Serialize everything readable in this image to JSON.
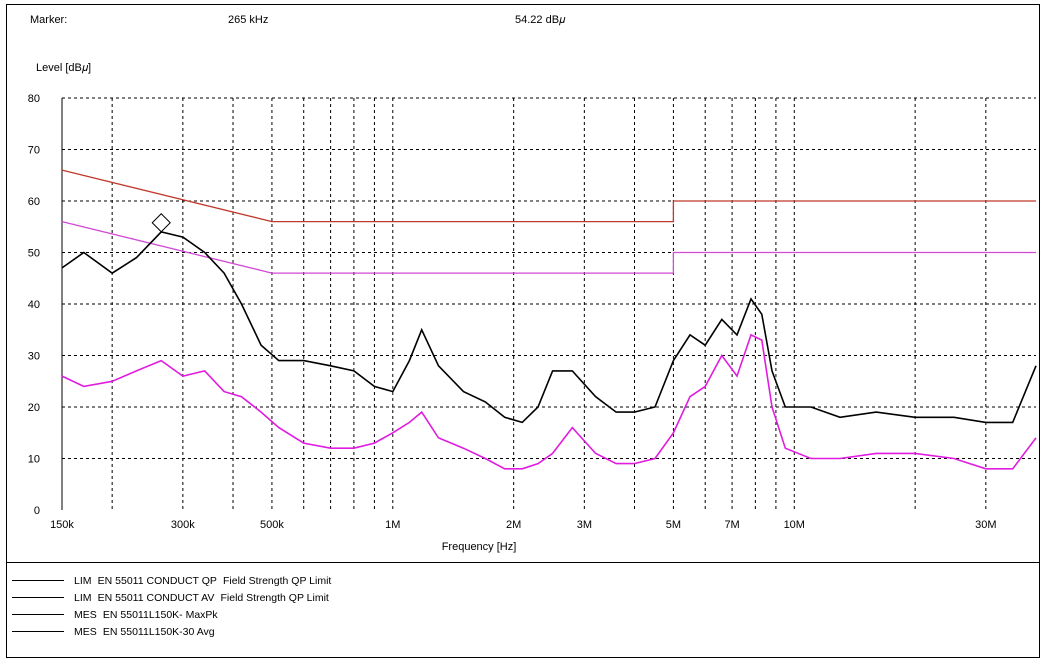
{
  "header": {
    "marker_label": "Marker:",
    "marker_frequency": "265 kHz",
    "marker_level": "54.22 dB𝜇"
  },
  "chart_data": {
    "type": "line",
    "xscale": "log",
    "xlim": [
      150000,
      40000000
    ],
    "ylim": [
      0,
      80
    ],
    "xlabel": "Frequency [Hz]",
    "ylabel": "Level [dB𝜇]",
    "grid": true,
    "x_ticks": [
      {
        "value": 150000,
        "label": "150k"
      },
      {
        "value": 300000,
        "label": "300k"
      },
      {
        "value": 500000,
        "label": "500k"
      },
      {
        "value": 1000000,
        "label": "1M"
      },
      {
        "value": 2000000,
        "label": "2M"
      },
      {
        "value": 3000000,
        "label": "3M"
      },
      {
        "value": 5000000,
        "label": "5M"
      },
      {
        "value": 7000000,
        "label": "7M"
      },
      {
        "value": 10000000,
        "label": "10M"
      },
      {
        "value": 30000000,
        "label": "30M"
      }
    ],
    "y_ticks": [
      0,
      10,
      20,
      30,
      40,
      50,
      60,
      70,
      80
    ],
    "marker": {
      "x": 265000,
      "y": 54.22
    },
    "series": [
      {
        "name": "LIM EN 55011 CONDUCT QP Field Strength QP Limit",
        "color": "#c0392b",
        "x": [
          150000,
          500000,
          5000000,
          5000000,
          40000000
        ],
        "y": [
          66,
          56,
          56,
          60,
          60
        ]
      },
      {
        "name": "LIM EN 55011 CONDUCT AV Field Strength QP Limit",
        "color": "#d24ad6",
        "x": [
          150000,
          500000,
          5000000,
          5000000,
          40000000
        ],
        "y": [
          56,
          46,
          46,
          50,
          50
        ]
      },
      {
        "name": "MES EN 55011L150K- MaxPk",
        "color": "#000000",
        "x": [
          150000,
          170000,
          200000,
          230000,
          265000,
          300000,
          340000,
          380000,
          420000,
          470000,
          520000,
          600000,
          700000,
          800000,
          900000,
          1000000,
          1100000,
          1180000,
          1300000,
          1500000,
          1700000,
          1900000,
          2100000,
          2300000,
          2500000,
          2800000,
          3200000,
          3600000,
          4000000,
          4500000,
          5000000,
          5500000,
          6000000,
          6600000,
          7200000,
          7800000,
          8300000,
          8800000,
          9500000,
          11000000,
          13000000,
          16000000,
          20000000,
          25000000,
          30000000,
          35000000,
          40000000
        ],
        "y": [
          47,
          50,
          46,
          49,
          54,
          53,
          50,
          46,
          40,
          32,
          29,
          29,
          28,
          27,
          24,
          23,
          29,
          35,
          28,
          23,
          21,
          18,
          17,
          20,
          27,
          27,
          22,
          19,
          19,
          20,
          29,
          34,
          32,
          37,
          34,
          41,
          38,
          27,
          20,
          20,
          18,
          19,
          18,
          18,
          17,
          17,
          28
        ]
      },
      {
        "name": "MES EN 55011L150K-30 Avg",
        "color": "#e01ce0",
        "x": [
          150000,
          170000,
          200000,
          230000,
          265000,
          300000,
          340000,
          380000,
          420000,
          470000,
          520000,
          600000,
          700000,
          800000,
          900000,
          1000000,
          1100000,
          1180000,
          1300000,
          1500000,
          1700000,
          1900000,
          2100000,
          2300000,
          2500000,
          2800000,
          3200000,
          3600000,
          4000000,
          4500000,
          5000000,
          5500000,
          6000000,
          6600000,
          7200000,
          7800000,
          8300000,
          8800000,
          9500000,
          11000000,
          13000000,
          16000000,
          20000000,
          25000000,
          30000000,
          35000000,
          40000000
        ],
        "y": [
          26,
          24,
          25,
          27,
          29,
          26,
          27,
          23,
          22,
          19,
          16,
          13,
          12,
          12,
          13,
          15,
          17,
          19,
          14,
          12,
          10,
          8,
          8,
          9,
          11,
          16,
          11,
          9,
          9,
          10,
          15,
          22,
          24,
          30,
          26,
          34,
          33,
          20,
          12,
          10,
          10,
          11,
          11,
          10,
          8,
          8,
          14
        ]
      }
    ]
  },
  "legend": [
    {
      "prefix": "LIM",
      "text": "EN 55011 CONDUCT QP",
      "desc": "Field Strength QP Limit"
    },
    {
      "prefix": "LIM",
      "text": "EN 55011 CONDUCT AV",
      "desc": "Field Strength QP Limit"
    },
    {
      "prefix": "MES",
      "text": "EN 55011L150K- MaxPk",
      "desc": ""
    },
    {
      "prefix": "MES",
      "text": "EN 55011L150K-30 Avg",
      "desc": ""
    }
  ]
}
